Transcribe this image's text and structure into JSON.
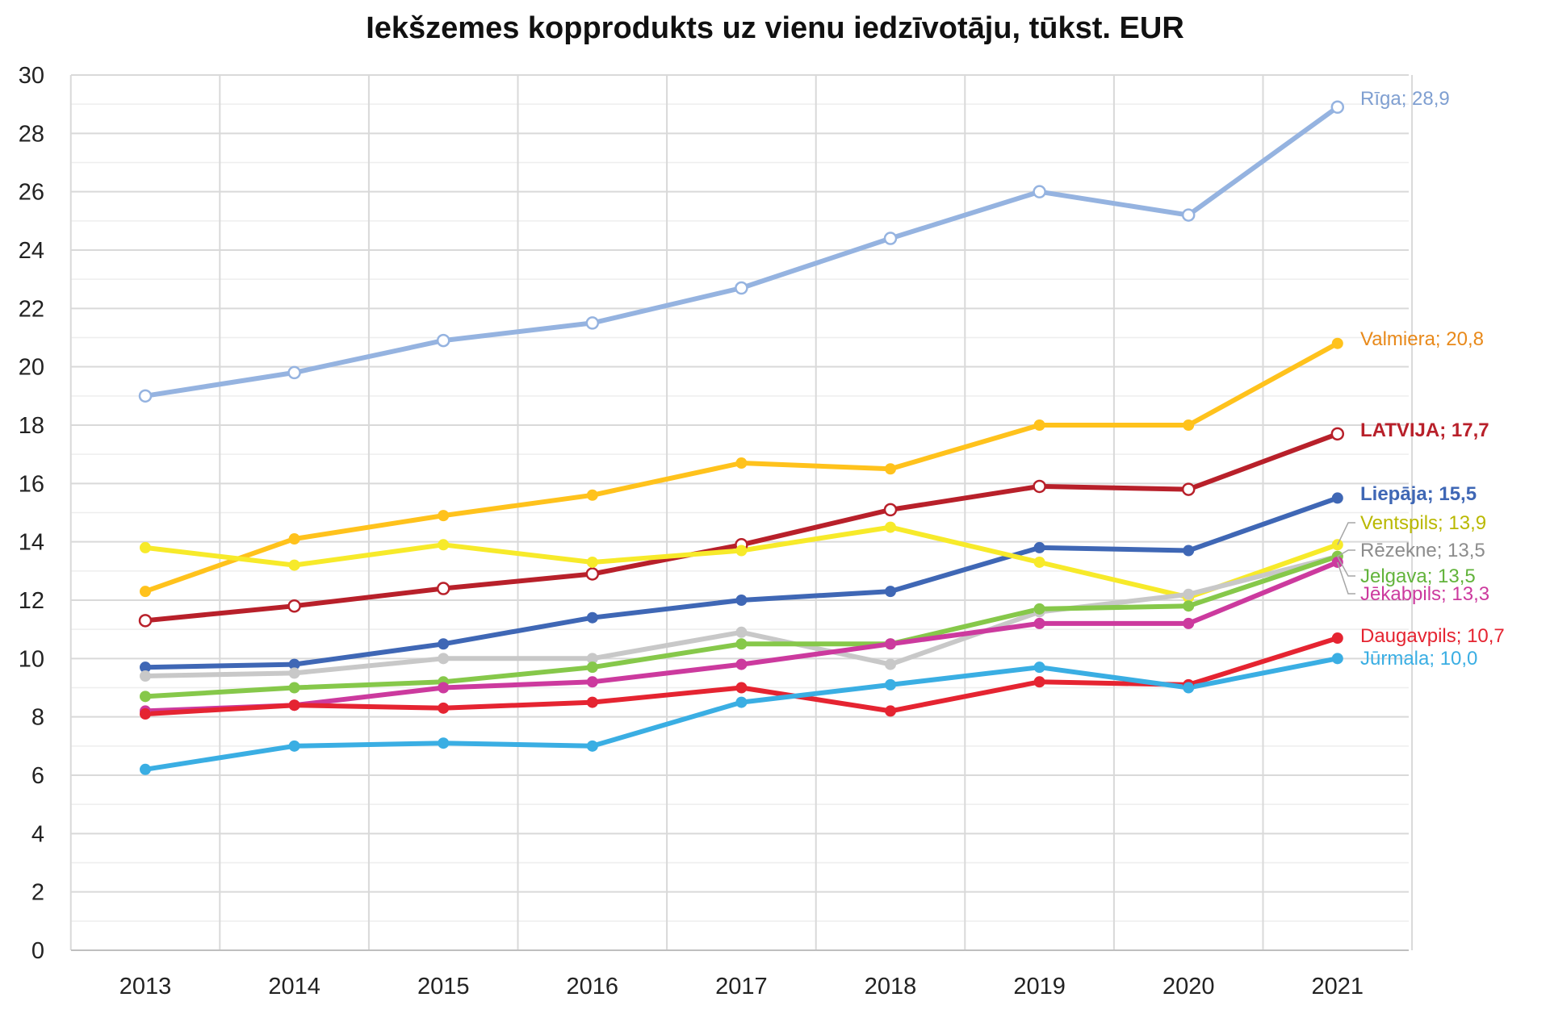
{
  "chart_data": {
    "type": "line",
    "title": "Iekšzemes kopprodukts uz vienu iedzīvotāju, tūkst. EUR",
    "xlabel": "",
    "ylabel": "",
    "ylim": [
      0,
      30
    ],
    "yticks": [
      0,
      2,
      4,
      6,
      8,
      10,
      12,
      14,
      16,
      18,
      20,
      22,
      24,
      26,
      28,
      30
    ],
    "grid": true,
    "legend": "end labels at right of series",
    "x": [
      "2013",
      "2014",
      "2015",
      "2016",
      "2017",
      "2018",
      "2019",
      "2020",
      "2021"
    ],
    "series": [
      {
        "name": "Rīga",
        "label": "Rīga; 28,9",
        "color": "#95b3e0",
        "label_color": "#7f9fd1",
        "marker": "hollow",
        "bold": false,
        "values": [
          19.0,
          19.8,
          20.9,
          21.5,
          22.7,
          24.4,
          26.0,
          25.2,
          28.9
        ]
      },
      {
        "name": "Valmiera",
        "label": "Valmiera; 20,8",
        "color": "#ffc21c",
        "label_color": "#e8891a",
        "marker": "filled",
        "bold": false,
        "values": [
          12.3,
          14.1,
          14.9,
          15.6,
          16.7,
          16.5,
          18.0,
          18.0,
          20.8
        ]
      },
      {
        "name": "LATVIJA",
        "label": "LATVIJA; 17,7",
        "color": "#b8202a",
        "label_color": "#b8202a",
        "marker": "hollow",
        "bold": true,
        "values": [
          11.3,
          11.8,
          12.4,
          12.9,
          13.9,
          15.1,
          15.9,
          15.8,
          17.7
        ]
      },
      {
        "name": "Liepāja",
        "label": "Liepāja; 15,5",
        "color": "#3f67b5",
        "label_color": "#3f67b5",
        "marker": "filled",
        "bold": true,
        "values": [
          9.7,
          9.8,
          10.5,
          11.4,
          12.0,
          12.3,
          13.8,
          13.7,
          15.5
        ]
      },
      {
        "name": "Ventspils",
        "label": "Ventspils; 13,9",
        "color": "#f7ea2a",
        "label_color": "#b9b800",
        "marker": "filled",
        "bold": false,
        "values": [
          13.8,
          13.2,
          13.9,
          13.3,
          13.7,
          14.5,
          13.3,
          12.1,
          13.9
        ]
      },
      {
        "name": "Rēzekne",
        "label": "Rēzekne; 13,5",
        "color": "#c8c8c8",
        "label_color": "#8c8c8c",
        "marker": "filled",
        "bold": false,
        "values": [
          9.4,
          9.5,
          10.0,
          10.0,
          10.9,
          9.8,
          11.6,
          12.2,
          13.5
        ]
      },
      {
        "name": "Jelgava",
        "label": "Jelgava; 13,5",
        "color": "#86c84a",
        "label_color": "#62b33b",
        "marker": "filled",
        "bold": false,
        "values": [
          8.7,
          9.0,
          9.2,
          9.7,
          10.5,
          10.5,
          11.7,
          11.8,
          13.5
        ]
      },
      {
        "name": "Jēkabpils",
        "label": "Jēkabpils; 13,3",
        "color": "#cc3a9e",
        "label_color": "#cc3a9e",
        "marker": "filled",
        "bold": false,
        "values": [
          8.2,
          8.4,
          9.0,
          9.2,
          9.8,
          10.5,
          11.2,
          11.2,
          13.3
        ]
      },
      {
        "name": "Daugavpils",
        "label": "Daugavpils; 10,7",
        "color": "#e52431",
        "label_color": "#e52431",
        "marker": "filled",
        "bold": false,
        "values": [
          8.1,
          8.4,
          8.3,
          8.5,
          9.0,
          8.2,
          9.2,
          9.1,
          10.7
        ]
      },
      {
        "name": "Jūrmala",
        "label": "Jūrmala; 10,0",
        "color": "#3aaee3",
        "label_color": "#3aaee3",
        "marker": "filled",
        "bold": false,
        "values": [
          6.2,
          7.0,
          7.1,
          7.0,
          8.5,
          9.1,
          9.7,
          9.0,
          10.0
        ]
      }
    ]
  }
}
